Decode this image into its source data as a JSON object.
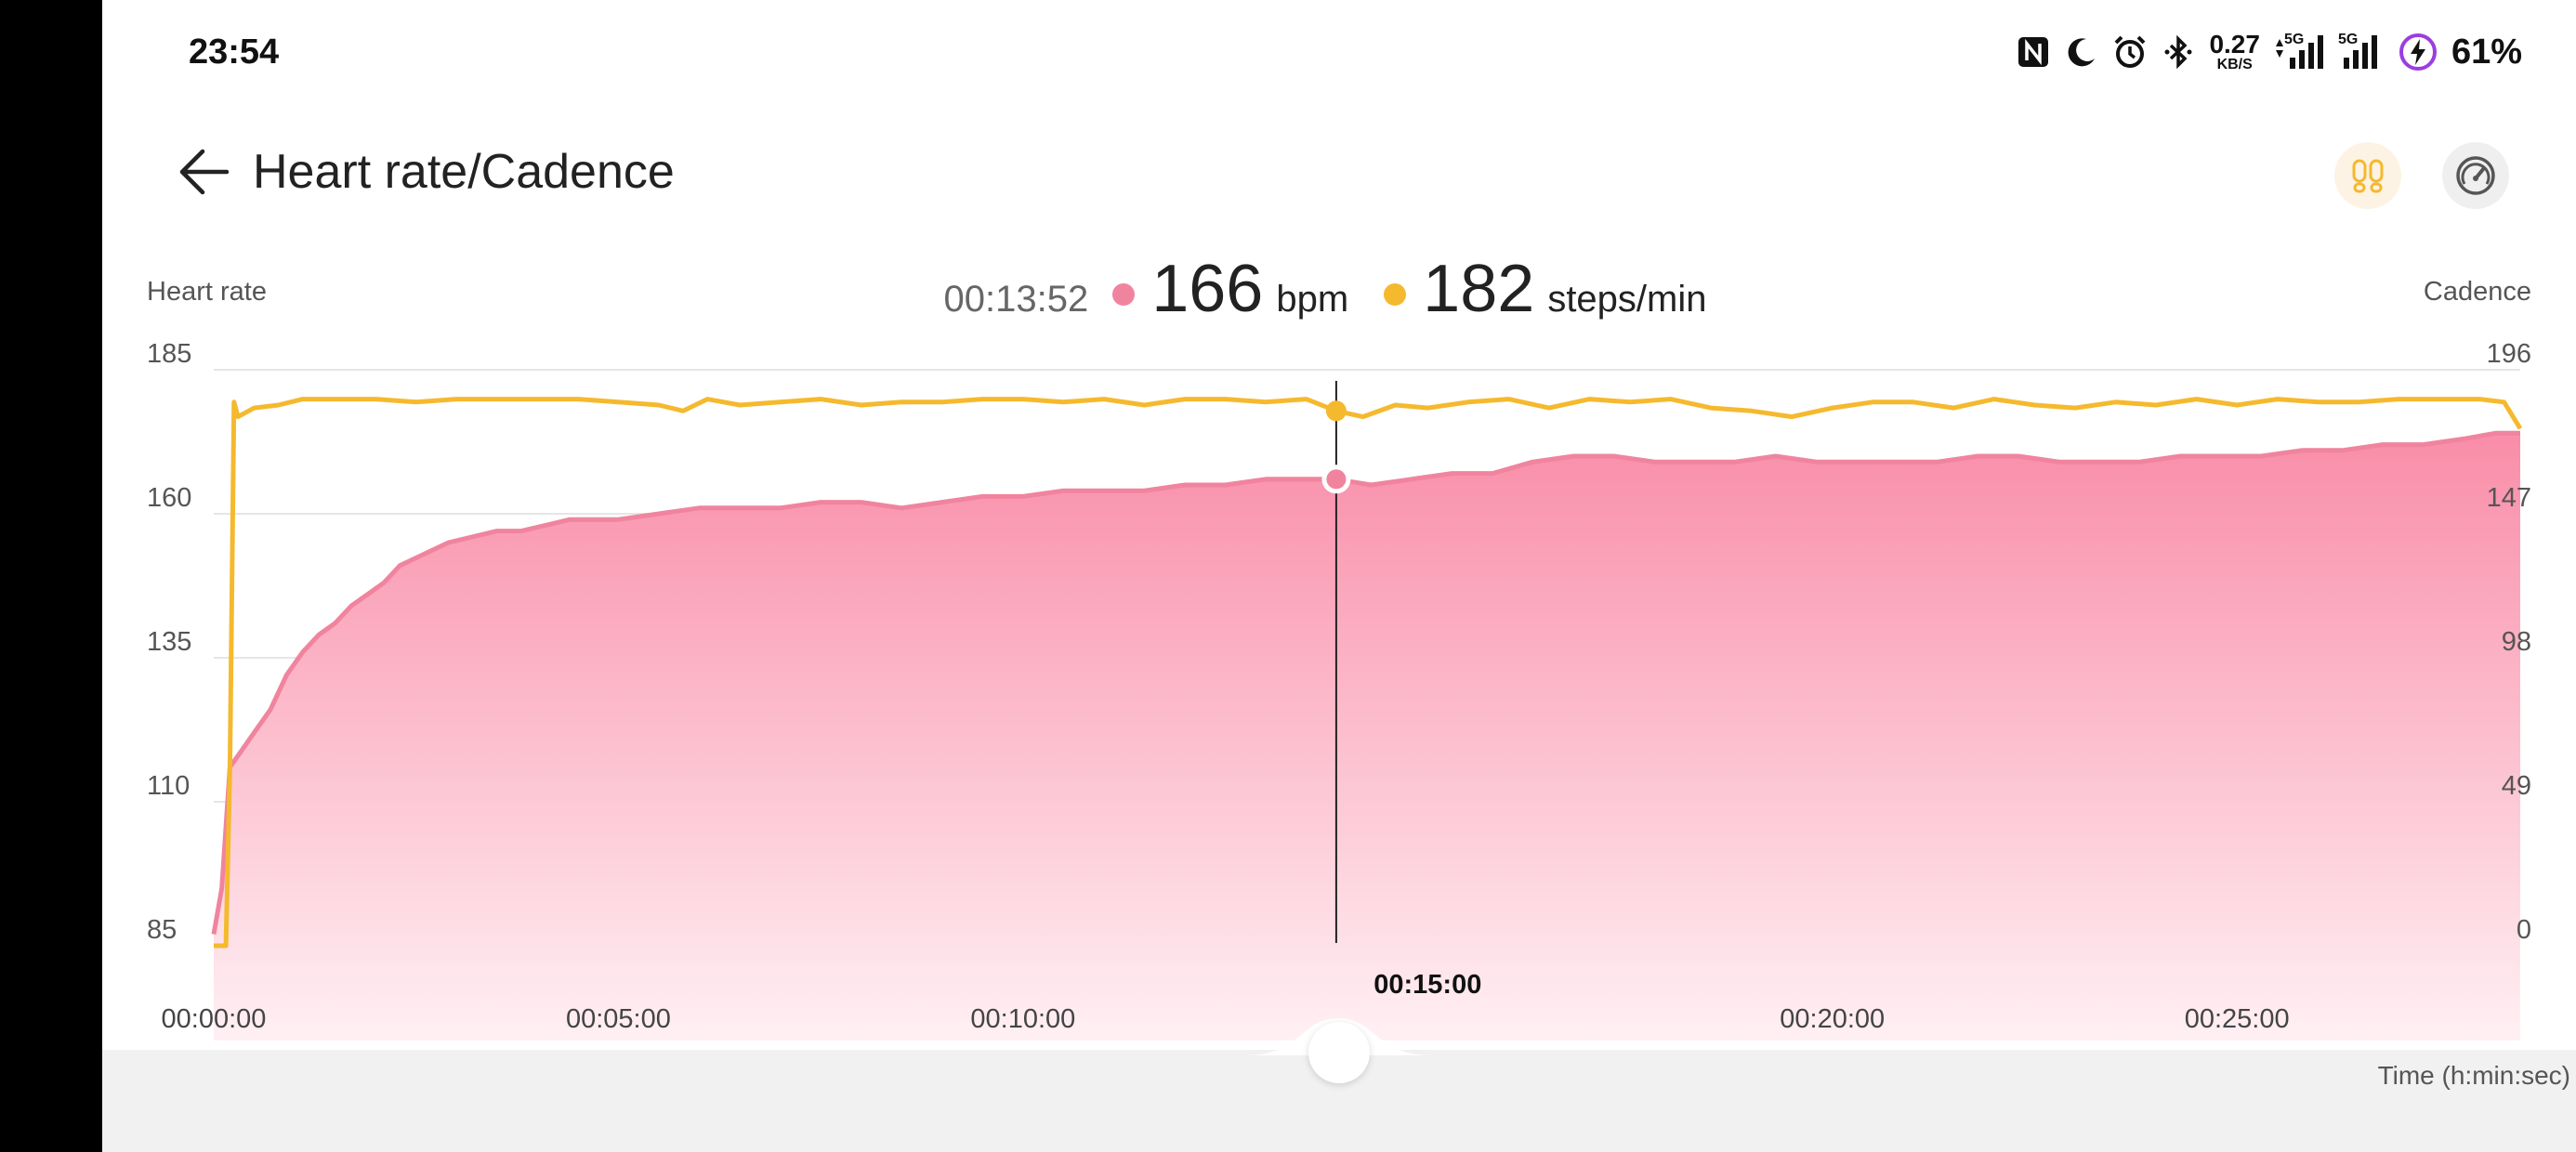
{
  "status_bar": {
    "time": "23:54",
    "net_speed_value": "0.27",
    "net_speed_unit": "KB/S",
    "network_label_1": "5G",
    "network_label_2": "5G",
    "battery": "61%",
    "icons": [
      "nfc-icon",
      "moon-icon",
      "alarm-icon",
      "bluetooth-icon",
      "data-arrows-icon",
      "signal-icon",
      "signal-icon",
      "battery-charging-icon"
    ]
  },
  "header": {
    "title": "Heart rate/Cadence",
    "back_icon": "arrow-left-icon",
    "buttons": [
      "footprints-icon",
      "speedometer-icon"
    ]
  },
  "readout": {
    "time": "00:13:52",
    "heart_rate": "166",
    "heart_rate_unit": "bpm",
    "cadence": "182",
    "cadence_unit": "steps/min"
  },
  "axes": {
    "left_title": "Heart rate",
    "right_title": "Cadence",
    "x_title": "Time (h:min:sec)",
    "left_ticks": [
      "185",
      "160",
      "135",
      "110",
      "85"
    ],
    "right_ticks": [
      "196",
      "147",
      "98",
      "49",
      "0"
    ],
    "x_ticks": [
      "00:00:00",
      "00:05:00",
      "00:10:00",
      "00:20:00",
      "00:25:00"
    ],
    "x_highlight": "00:15:00"
  },
  "colors": {
    "heart_rate": "#f0849e",
    "cadence": "#f5b92e",
    "fill_top": "#f98da8",
    "fill_bottom": "#fff0f4"
  },
  "chart_data": {
    "type": "line",
    "title": "",
    "xlabel": "Time (h:min:sec)",
    "x_unit": "minutes",
    "xlim": [
      0,
      28.5
    ],
    "series": [
      {
        "name": "Heart rate",
        "axis": "left",
        "unit": "bpm",
        "ylim": [
          85,
          185
        ],
        "x": [
          0,
          0.1,
          0.2,
          0.35,
          0.5,
          0.7,
          0.9,
          1.1,
          1.3,
          1.5,
          1.7,
          1.9,
          2.1,
          2.3,
          2.6,
          2.9,
          3.2,
          3.5,
          3.8,
          4.1,
          4.4,
          4.7,
          5.0,
          5.5,
          6.0,
          6.5,
          7.0,
          7.5,
          8.0,
          8.5,
          9.0,
          9.5,
          10.0,
          10.5,
          11.0,
          11.5,
          12.0,
          12.5,
          13.0,
          13.5,
          13.87,
          14.3,
          14.8,
          15.3,
          15.8,
          16.3,
          16.8,
          17.3,
          17.8,
          18.3,
          18.8,
          19.3,
          19.8,
          20.3,
          20.8,
          21.3,
          21.8,
          22.3,
          22.8,
          23.3,
          23.8,
          24.3,
          24.8,
          25.3,
          25.8,
          26.3,
          26.8,
          27.3,
          27.8,
          28.2,
          28.5
        ],
        "values": [
          87,
          95,
          116,
          119,
          122,
          126,
          132,
          136,
          139,
          141,
          144,
          146,
          148,
          151,
          153,
          155,
          156,
          157,
          157,
          158,
          159,
          159,
          159,
          160,
          161,
          161,
          161,
          162,
          162,
          161,
          162,
          163,
          163,
          164,
          164,
          164,
          165,
          165,
          166,
          166,
          166,
          165,
          166,
          167,
          167,
          169,
          170,
          170,
          169,
          169,
          169,
          170,
          169,
          169,
          169,
          169,
          170,
          170,
          169,
          169,
          169,
          170,
          170,
          170,
          171,
          171,
          172,
          172,
          173,
          174,
          174
        ]
      },
      {
        "name": "Cadence",
        "axis": "right",
        "unit": "steps/min",
        "ylim": [
          0,
          196
        ],
        "x": [
          0,
          0.15,
          0.2,
          0.25,
          0.3,
          0.5,
          0.8,
          1.1,
          1.5,
          2.0,
          2.5,
          3.0,
          3.5,
          4.0,
          4.5,
          5.0,
          5.5,
          5.8,
          6.1,
          6.5,
          7.0,
          7.5,
          8.0,
          8.5,
          9.0,
          9.5,
          10.0,
          10.5,
          11.0,
          11.5,
          12.0,
          12.5,
          13.0,
          13.5,
          13.87,
          14.2,
          14.6,
          15.0,
          15.5,
          16.0,
          16.5,
          17.0,
          17.5,
          18.0,
          18.5,
          19.0,
          19.5,
          20.0,
          20.5,
          21.0,
          21.5,
          22.0,
          22.5,
          23.0,
          23.5,
          24.0,
          24.5,
          25.0,
          25.5,
          26.0,
          26.5,
          27.0,
          27.5,
          28.0,
          28.3,
          28.5
        ],
        "values": [
          0,
          0,
          60,
          185,
          180,
          183,
          184,
          186,
          186,
          186,
          185,
          186,
          186,
          186,
          186,
          185,
          184,
          182,
          186,
          184,
          185,
          186,
          184,
          185,
          185,
          186,
          186,
          185,
          186,
          184,
          186,
          186,
          185,
          186,
          182,
          180,
          184,
          183,
          185,
          186,
          183,
          186,
          185,
          186,
          183,
          182,
          180,
          183,
          185,
          185,
          183,
          186,
          184,
          183,
          185,
          184,
          186,
          184,
          186,
          185,
          185,
          186,
          186,
          186,
          185,
          176
        ]
      }
    ]
  }
}
